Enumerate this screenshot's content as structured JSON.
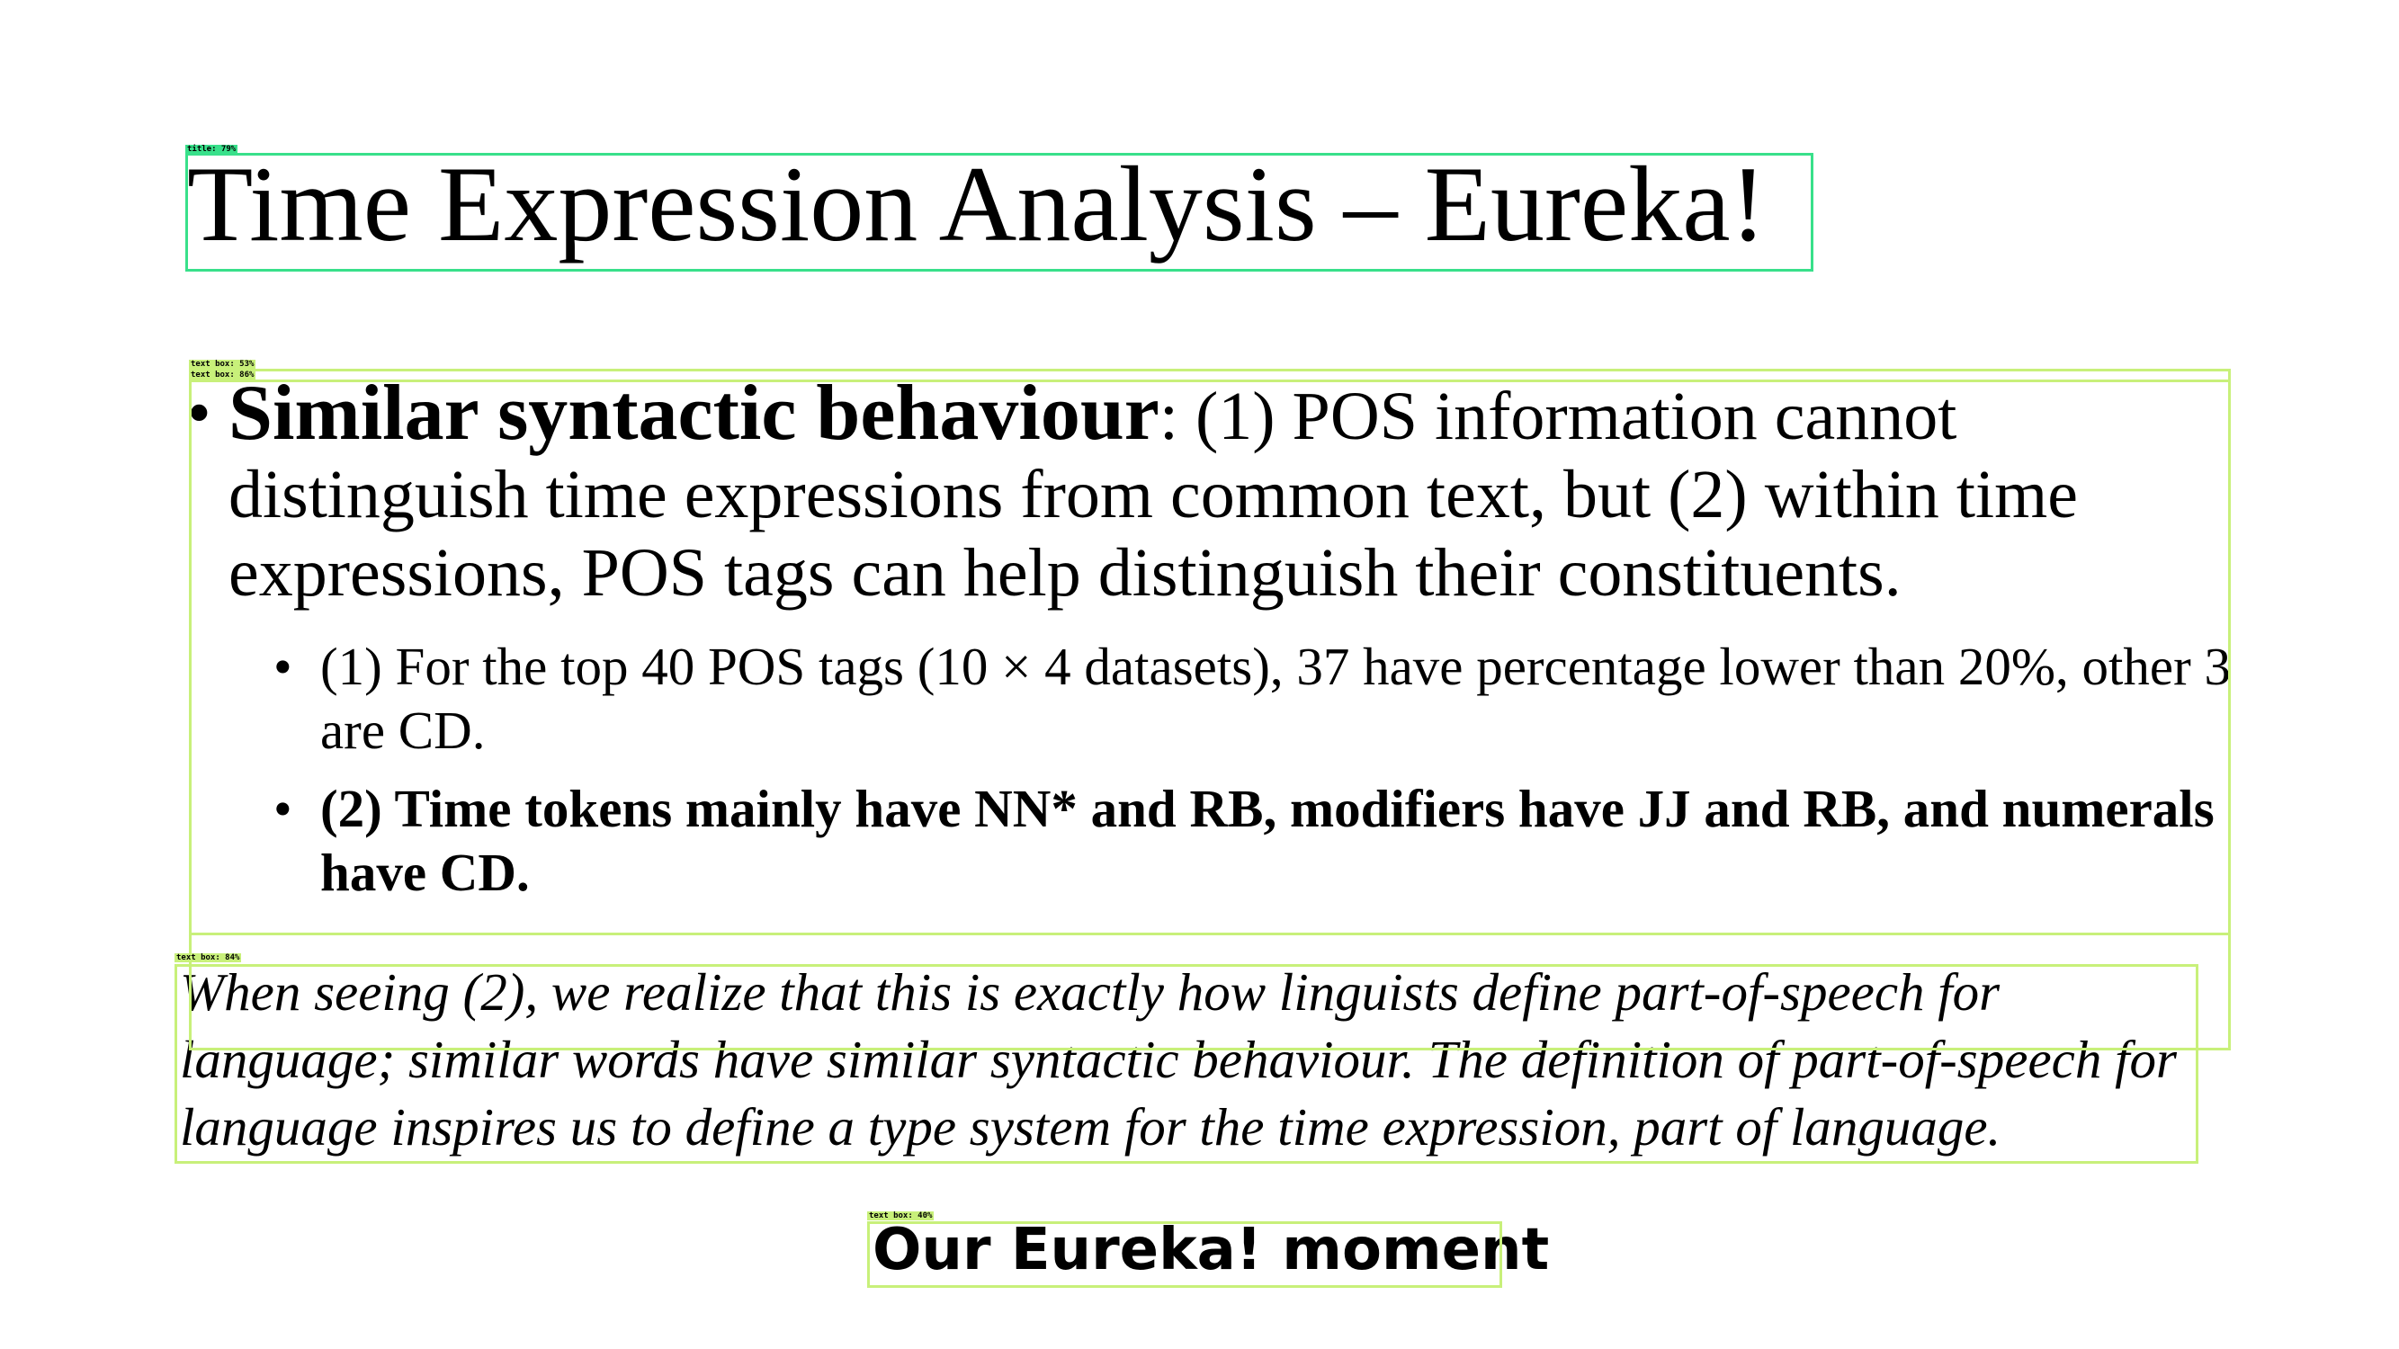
{
  "slide": {
    "title": "Time Expression Analysis – Eureka!",
    "bullet_symbol": "•",
    "main_bullet": {
      "lead": "Similar syntactic behaviour",
      "text": ": (1) POS information cannot distinguish time expressions from common text, but (2) within time expressions, POS tags can help distinguish their constituents."
    },
    "sub_bullets": [
      {
        "text": "(1) For the top 40 POS tags (10 × 4 datasets), 37 have percentage lower than 20%, other 3 are CD."
      },
      {
        "text": "(2) Time tokens mainly have NN* and RB, modifiers have JJ and RB, and numerals have CD."
      }
    ],
    "note": "When seeing (2), we realize that this is exactly how linguists define part-of-speech for language; similar words have similar syntactic behaviour. The definition of part-of-speech for language inspires us to define a type system for the time expression, part of language.",
    "moment": "Our Eureka! moment"
  },
  "detections": [
    {
      "label": "title: 79%"
    },
    {
      "label": "text box: 53%"
    },
    {
      "label": "text box: 86%"
    },
    {
      "label": "text box: 84%"
    },
    {
      "label": "text box: 40%"
    }
  ],
  "colors": {
    "text": "#000000",
    "detection_box": "#c8f07a",
    "title_detection_box": "#38e08a",
    "background": "#ffffff"
  }
}
